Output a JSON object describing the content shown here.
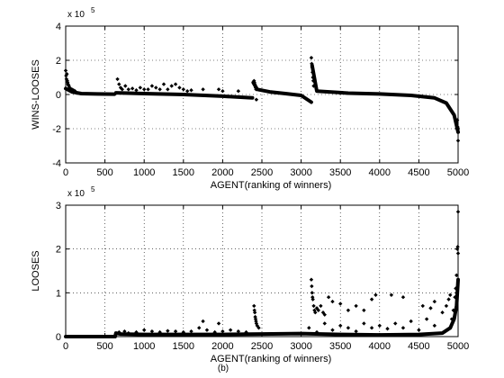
{
  "chart_data": [
    {
      "type": "scatter",
      "xlabel": "AGENT(ranking of winners)",
      "ylabel": "WINS-LOOSES",
      "multiplier_text": "x 10",
      "multiplier_exponent": "5",
      "xlim": [
        0,
        5000
      ],
      "ylim": [
        -4,
        4
      ],
      "xticks": [
        0,
        500,
        1000,
        1500,
        2000,
        2500,
        3000,
        3500,
        4000,
        4500,
        5000
      ],
      "yticks": [
        -4,
        -2,
        0,
        2,
        4
      ],
      "grid": true,
      "marker_color": "#000000",
      "series": [
        {
          "segments": [
            {
              "x": [
                0,
                80,
                200,
                400,
                620
              ],
              "y": [
                0.35,
                0.15,
                0.05,
                0.03,
                0.02
              ]
            },
            {
              "x": [
                640,
                1000,
                1500,
                2000,
                2380
              ],
              "y": [
                0.1,
                0.05,
                0.0,
                -0.1,
                -0.2
              ]
            },
            {
              "x": [
                2390,
                2440,
                2600,
                2800,
                3000,
                3130
              ],
              "y": [
                0.7,
                0.3,
                0.15,
                0.05,
                -0.05,
                -0.45
              ]
            },
            {
              "x": [
                3140,
                3200,
                3600,
                4000,
                4400,
                4700,
                4850,
                4950,
                5000
              ],
              "y": [
                1.7,
                0.2,
                0.08,
                0.03,
                -0.05,
                -0.2,
                -0.5,
                -1.2,
                -2.2
              ]
            }
          ],
          "outliers": [
            {
              "x": [
                0,
                5,
                10,
                15,
                20,
                25,
                30,
                35,
                40,
                50,
                60,
                70,
                80,
                100,
                120
              ],
              "y": [
                1.4,
                1.1,
                0.9,
                1.2,
                0.8,
                0.7,
                0.6,
                0.55,
                0.5,
                0.4,
                0.35,
                0.3,
                0.3,
                0.25,
                0.2
              ]
            },
            {
              "x": [
                660,
                680,
                700,
                720,
                760,
                800,
                850,
                900,
                950,
                1000,
                1050,
                1100,
                1150,
                1200,
                1250,
                1300,
                1350,
                1400,
                1450,
                1500,
                1550,
                1600,
                1750,
                1950,
                2000,
                2200
              ],
              "y": [
                0.9,
                0.6,
                0.4,
                0.3,
                0.5,
                0.3,
                0.35,
                0.25,
                0.4,
                0.3,
                0.3,
                0.5,
                0.4,
                0.3,
                0.6,
                0.3,
                0.5,
                0.6,
                0.4,
                0.3,
                0.2,
                0.25,
                0.3,
                0.3,
                0.2,
                0.2
              ]
            },
            {
              "x": [
                2400,
                2405,
                2410,
                2415,
                2420,
                2425,
                2430
              ],
              "y": [
                0.8,
                0.7,
                0.6,
                0.5,
                0.4,
                0.3,
                -0.3
              ]
            },
            {
              "x": [
                3130,
                3135,
                3140,
                3145,
                3150,
                3155,
                3160
              ],
              "y": [
                2.15,
                1.8,
                1.6,
                1.3,
                1.0,
                0.8,
                0.5
              ]
            },
            {
              "x": [
                4990,
                4995,
                5000,
                5000
              ],
              "y": [
                -1.5,
                -1.9,
                -2.0,
                -2.7
              ]
            }
          ]
        }
      ]
    },
    {
      "type": "scatter",
      "xlabel": "AGENT(ranking of winners)",
      "ylabel": "LOOSES",
      "caption": "(b)",
      "multiplier_text": "x 10",
      "multiplier_exponent": "5",
      "xlim": [
        0,
        5000
      ],
      "ylim": [
        0,
        3
      ],
      "xticks": [
        0,
        500,
        1000,
        1500,
        2000,
        2500,
        3000,
        3500,
        4000,
        4500,
        5000
      ],
      "yticks": [
        0,
        1,
        2,
        3
      ],
      "grid": true,
      "marker_color": "#000000",
      "series": [
        {
          "segments": [
            {
              "x": [
                0,
                300,
                620
              ],
              "y": [
                0.0,
                0.0,
                0.0
              ]
            },
            {
              "x": [
                630,
                640,
                700,
                1000,
                1500,
                2000,
                2500,
                3000,
                3500,
                4000,
                4500,
                4800,
                4900,
                4950,
                4980,
                5000
              ],
              "y": [
                0.0,
                0.08,
                0.06,
                0.05,
                0.05,
                0.05,
                0.06,
                0.07,
                0.05,
                0.04,
                0.05,
                0.08,
                0.2,
                0.4,
                0.7,
                1.3
              ]
            }
          ],
          "outliers": [
            {
              "x": [
                680,
                750,
                800,
                900,
                1000,
                1100,
                1200,
                1300,
                1400,
                1500,
                1600,
                1700,
                1800,
                1900,
                2000,
                2100,
                2200,
                2300,
                1750,
                1950
              ],
              "y": [
                0.1,
                0.12,
                0.08,
                0.1,
                0.15,
                0.12,
                0.1,
                0.13,
                0.12,
                0.1,
                0.12,
                0.2,
                0.15,
                0.1,
                0.12,
                0.15,
                0.12,
                0.1,
                0.35,
                0.3
              ]
            },
            {
              "x": [
                2400,
                2405,
                2410,
                2415,
                2420,
                2425,
                2430,
                2440,
                2460
              ],
              "y": [
                0.7,
                0.6,
                0.55,
                0.45,
                0.4,
                0.35,
                0.3,
                0.25,
                0.2
              ]
            },
            {
              "x": [
                3130,
                3135,
                3140,
                3145,
                3150,
                3160,
                3170,
                3180,
                3200,
                3220,
                3250,
                3280,
                3300,
                3350,
                3400,
                3500,
                3600,
                3700,
                3800,
                3900
              ],
              "y": [
                1.3,
                1.15,
                1.0,
                0.9,
                0.85,
                0.7,
                0.6,
                0.55,
                0.65,
                0.6,
                0.7,
                0.55,
                0.5,
                0.9,
                0.8,
                0.75,
                0.6,
                0.7,
                0.6,
                0.85
              ]
            },
            {
              "x": [
                3100,
                3200,
                3300,
                3400,
                3500,
                3600,
                3700,
                3800,
                3900,
                4000,
                4100,
                4200,
                4300,
                4400,
                4500,
                4600,
                4700
              ],
              "y": [
                0.2,
                0.1,
                0.3,
                0.15,
                0.25,
                0.2,
                0.12,
                0.3,
                0.2,
                0.25,
                0.18,
                0.3,
                0.2,
                0.35,
                0.15,
                0.4,
                0.25
              ]
            },
            {
              "x": [
                3950,
                4150,
                4300,
                4550,
                4650,
                4700,
                4800,
                4850,
                4880,
                4900
              ],
              "y": [
                0.95,
                0.95,
                0.9,
                0.7,
                0.65,
                0.8,
                0.55,
                0.7,
                0.85,
                0.95
              ]
            },
            {
              "x": [
                4920,
                4940,
                4960,
                4970,
                4980,
                4990,
                4995,
                5000,
                5000
              ],
              "y": [
                0.4,
                0.6,
                0.9,
                1.1,
                1.4,
                2.0,
                2.05,
                1.9,
                2.85
              ]
            }
          ]
        }
      ]
    }
  ]
}
